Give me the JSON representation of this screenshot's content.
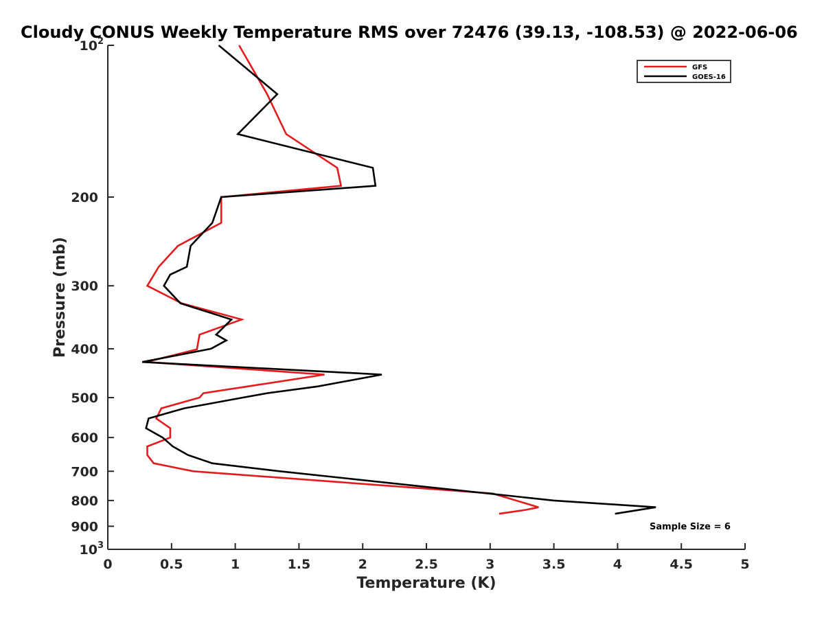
{
  "chart_data": {
    "type": "line",
    "title": "Cloudy CONUS Weekly Temperature RMS over 72476 (39.13, -108.53) @ 2022-06-06",
    "xlabel": "Temperature (K)",
    "ylabel": "Pressure (mb)",
    "xlim": [
      0,
      5
    ],
    "ylim": [
      100,
      1000
    ],
    "y_scale": "log",
    "y_reversed": true,
    "x_ticks": [
      "0",
      "0.5",
      "1",
      "1.5",
      "2",
      "2.5",
      "3",
      "3.5",
      "4",
      "4.5",
      "5"
    ],
    "y_ticks": [
      {
        "value": 100,
        "label": "10",
        "sup": "2"
      },
      {
        "value": 200,
        "label": "200"
      },
      {
        "value": 300,
        "label": "300"
      },
      {
        "value": 400,
        "label": "400"
      },
      {
        "value": 500,
        "label": "500"
      },
      {
        "value": 600,
        "label": "600"
      },
      {
        "value": 700,
        "label": "700"
      },
      {
        "value": 800,
        "label": "800"
      },
      {
        "value": 900,
        "label": "900"
      },
      {
        "value": 1000,
        "label": "10",
        "sup": "3"
      }
    ],
    "legend_position": "top-right",
    "grid": false,
    "annotation": "Sample Size = 6",
    "series": [
      {
        "name": "GFS",
        "color": "#e41a1c",
        "points": [
          [
            1.03,
            100
          ],
          [
            1.25,
            125
          ],
          [
            1.4,
            150
          ],
          [
            1.8,
            175
          ],
          [
            1.83,
            190
          ],
          [
            0.89,
            200
          ],
          [
            0.89,
            225
          ],
          [
            0.55,
            250
          ],
          [
            0.4,
            275
          ],
          [
            0.31,
            300
          ],
          [
            0.58,
            325
          ],
          [
            1.05,
            350
          ],
          [
            0.72,
            375
          ],
          [
            0.7,
            400
          ],
          [
            0.7,
            401
          ],
          [
            0.3,
            425
          ],
          [
            1.7,
            450
          ],
          [
            1.1,
            475
          ],
          [
            0.75,
            490
          ],
          [
            0.72,
            500
          ],
          [
            0.42,
            525
          ],
          [
            0.38,
            550
          ],
          [
            0.49,
            575
          ],
          [
            0.49,
            600
          ],
          [
            0.31,
            625
          ],
          [
            0.31,
            650
          ],
          [
            0.36,
            675
          ],
          [
            0.67,
            700
          ],
          [
            3.02,
            775
          ],
          [
            3.38,
            825
          ],
          [
            3.28,
            835
          ],
          [
            3.07,
            850
          ]
        ]
      },
      {
        "name": "GOES-16",
        "color": "#000000",
        "points": [
          [
            0.87,
            100
          ],
          [
            1.33,
            125
          ],
          [
            1.02,
            150
          ],
          [
            2.08,
            175
          ],
          [
            2.1,
            190
          ],
          [
            0.89,
            200
          ],
          [
            0.82,
            225
          ],
          [
            0.65,
            250
          ],
          [
            0.62,
            275
          ],
          [
            0.49,
            285
          ],
          [
            0.44,
            300
          ],
          [
            0.57,
            325
          ],
          [
            0.97,
            350
          ],
          [
            0.85,
            375
          ],
          [
            0.93,
            385
          ],
          [
            0.81,
            400
          ],
          [
            0.27,
            425
          ],
          [
            2.15,
            450
          ],
          [
            1.65,
            475
          ],
          [
            1.25,
            490
          ],
          [
            1.06,
            500
          ],
          [
            0.6,
            525
          ],
          [
            0.32,
            550
          ],
          [
            0.3,
            575
          ],
          [
            0.43,
            600
          ],
          [
            0.51,
            625
          ],
          [
            0.63,
            650
          ],
          [
            0.82,
            675
          ],
          [
            1.35,
            700
          ],
          [
            3.5,
            800
          ],
          [
            4.3,
            825
          ],
          [
            3.98,
            850
          ]
        ]
      }
    ]
  }
}
